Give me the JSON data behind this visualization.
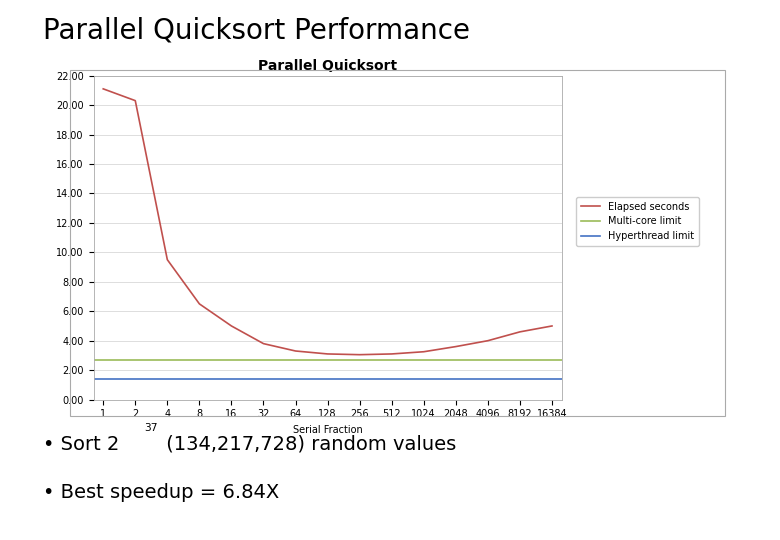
{
  "title": "Parallel Quicksort Performance",
  "chart_title": "Parallel Quicksort",
  "xlabel": "Serial Fraction",
  "ylabel": "",
  "x_labels": [
    "1",
    "2",
    "4",
    "8",
    "16",
    "32",
    "64",
    "128",
    "256",
    "512",
    "1024",
    "2048",
    "4096",
    "8192",
    "16384"
  ],
  "x_values": [
    1,
    2,
    4,
    8,
    16,
    32,
    64,
    128,
    256,
    512,
    1024,
    2048,
    4096,
    8192,
    16384
  ],
  "elapsed_seconds": [
    21.1,
    20.3,
    9.5,
    6.5,
    5.0,
    3.8,
    3.3,
    3.1,
    3.05,
    3.1,
    3.25,
    3.6,
    4.0,
    4.6,
    5.0
  ],
  "multicore_limit": 2.7,
  "hyperthread_limit": 1.4,
  "elapsed_color": "#c0504d",
  "multicore_color": "#9bbb59",
  "hyperthread_line_color": "#4472c4",
  "ylim": [
    0,
    22
  ],
  "yticks": [
    0.0,
    2.0,
    4.0,
    6.0,
    8.0,
    10.0,
    12.0,
    14.0,
    16.0,
    18.0,
    20.0,
    22.0
  ],
  "background_color": "#ffffff",
  "plot_bg_color": "#ffffff",
  "legend_labels": [
    "Elapsed seconds",
    "Multi-core limit",
    "Hyperthread limit"
  ],
  "bullet2": "Best speedup = 6.84X",
  "title_fontsize": 20,
  "chart_title_fontsize": 10,
  "axis_label_fontsize": 7,
  "legend_fontsize": 7,
  "bullet_fontsize": 14
}
